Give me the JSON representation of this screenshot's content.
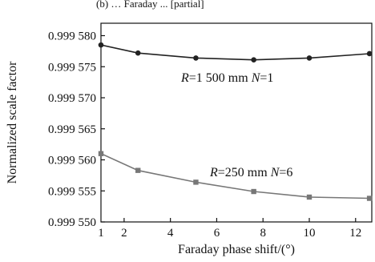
{
  "chart_data": {
    "type": "line",
    "title": "",
    "cut_off_title_fragment": "(b) … Faraday ... [partial]",
    "xlabel": "Faraday phase shift/(°)",
    "ylabel": "Normalized scale factor",
    "xlim": [
      1,
      12.7
    ],
    "ylim": [
      0.99955,
      0.999582
    ],
    "x_ticks": [
      2,
      4,
      6,
      8,
      10,
      12
    ],
    "x_tick_labels": [
      "2",
      "4",
      "6",
      "8",
      "10",
      "12"
    ],
    "x_origin_label": "1",
    "y_ticks": [
      0.99955,
      0.999555,
      0.99956,
      0.999565,
      0.99957,
      0.999575,
      0.99958
    ],
    "y_tick_labels": [
      "0.999 550",
      "0.999 555",
      "0.999 560",
      "0.999 565",
      "0.999 570",
      "0.999 575",
      "0.999 580"
    ],
    "grid": false,
    "series": [
      {
        "name": "R=1 500 mm N=1",
        "marker": "circle",
        "color": "#222222",
        "x": [
          1.0,
          2.6,
          5.1,
          7.6,
          10.0,
          12.6
        ],
        "y": [
          0.9995785,
          0.9995772,
          0.9995764,
          0.9995761,
          0.9995764,
          0.9995771
        ]
      },
      {
        "name": "R=250 mm N=6",
        "marker": "square",
        "color": "#777777",
        "x": [
          1.0,
          2.6,
          5.1,
          7.6,
          10.0,
          12.6
        ],
        "y": [
          0.999561,
          0.9995583,
          0.9995564,
          0.9995549,
          0.999554,
          0.9995538
        ]
      }
    ],
    "annotations": [
      {
        "series": "R=1 500 mm N=1",
        "parts": [
          "R",
          "=1 500 mm ",
          "N",
          "=1"
        ]
      },
      {
        "series": "R=250 mm N=6",
        "parts": [
          "R",
          "=250 mm ",
          "N",
          "=6"
        ]
      }
    ]
  }
}
